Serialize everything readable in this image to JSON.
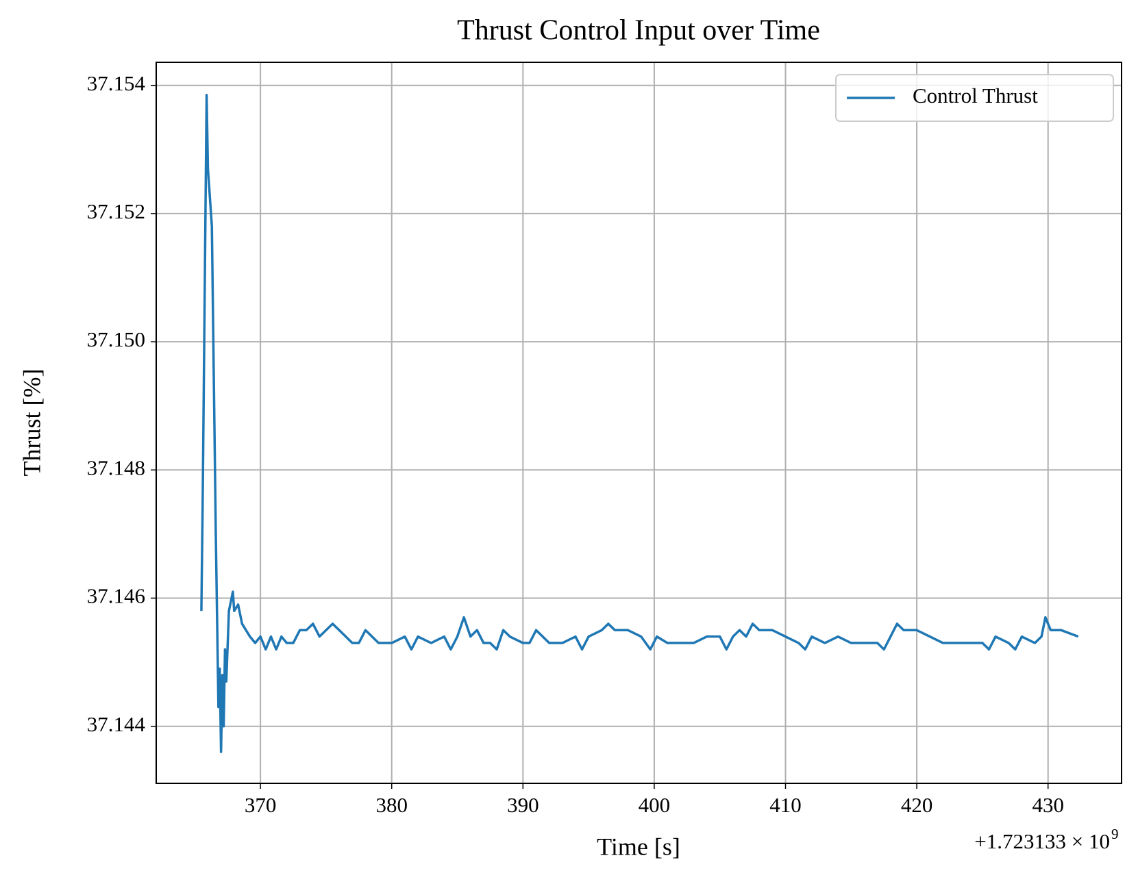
{
  "chart_data": {
    "type": "line",
    "title": "Thrust Control Input over Time",
    "x_label": "Time [s]",
    "y_label": "Thrust [%]",
    "x_offset_label": "+1.723133 × 10",
    "x_offset_exponent": "9",
    "legend": "upper right",
    "grid": true,
    "xlim": [
      362.06,
      435.6
    ],
    "ylim": [
      37.14311,
      37.15436
    ],
    "xticks": [
      370,
      380,
      390,
      400,
      410,
      420,
      430
    ],
    "yticks": [
      37.144,
      37.146,
      37.148,
      {
        "value": 37.15,
        "label": "37.150"
      },
      37.152,
      37.154
    ],
    "x": [
      365.5,
      365.6,
      365.9,
      366.0,
      366.3,
      366.6,
      366.8,
      366.9,
      367.0,
      367.1,
      367.2,
      367.3,
      367.4,
      367.6,
      367.9,
      368.0,
      368.3,
      368.6,
      368.9,
      369.2,
      369.6,
      370.0,
      370.4,
      370.8,
      371.2,
      371.6,
      372.0,
      372.5,
      373.0,
      373.5,
      374.0,
      374.5,
      375.0,
      375.5,
      376.0,
      376.5,
      377.0,
      377.5,
      378.0,
      378.5,
      379.0,
      380.0,
      381.0,
      381.5,
      382.0,
      383.0,
      384.0,
      384.5,
      385.0,
      385.5,
      386.0,
      386.5,
      387.0,
      387.5,
      388.0,
      388.5,
      389.0,
      390.0,
      390.5,
      391.0,
      392.0,
      393.0,
      394.0,
      394.5,
      395.0,
      396.0,
      396.5,
      397.0,
      398.0,
      399.0,
      399.7,
      400.2,
      401.0,
      402.0,
      403.0,
      404.0,
      405.0,
      405.5,
      406.0,
      406.5,
      407.0,
      407.5,
      408.0,
      409.0,
      410.0,
      411.0,
      411.5,
      412.0,
      413.0,
      414.0,
      415.0,
      416.0,
      417.0,
      417.5,
      418.0,
      418.5,
      419.0,
      420.0,
      421.0,
      422.0,
      423.0,
      424.0,
      425.0,
      425.5,
      426.0,
      427.0,
      427.5,
      428.0,
      429.0,
      429.5,
      429.8,
      430.2,
      431.0,
      432.3
    ],
    "series": [
      {
        "name": "Control Thrust",
        "color": "#1f77b4",
        "values": [
          37.1458,
          37.1475,
          37.15385,
          37.1527,
          37.1518,
          37.147,
          37.1443,
          37.1449,
          37.1436,
          37.1448,
          37.144,
          37.1452,
          37.1447,
          37.1458,
          37.1461,
          37.1458,
          37.1459,
          37.1456,
          37.1455,
          37.1454,
          37.1453,
          37.1454,
          37.1452,
          37.1454,
          37.1452,
          37.1454,
          37.1453,
          37.1453,
          37.1455,
          37.1455,
          37.1456,
          37.1454,
          37.1455,
          37.1456,
          37.1455,
          37.1454,
          37.1453,
          37.1453,
          37.1455,
          37.1454,
          37.1453,
          37.1453,
          37.1454,
          37.1452,
          37.1454,
          37.1453,
          37.1454,
          37.1452,
          37.1454,
          37.1457,
          37.1454,
          37.1455,
          37.1453,
          37.1453,
          37.1452,
          37.1455,
          37.1454,
          37.1453,
          37.1453,
          37.1455,
          37.1453,
          37.1453,
          37.1454,
          37.1452,
          37.1454,
          37.1455,
          37.1456,
          37.1455,
          37.1455,
          37.1454,
          37.1452,
          37.1454,
          37.1453,
          37.1453,
          37.1453,
          37.1454,
          37.1454,
          37.1452,
          37.1454,
          37.1455,
          37.1454,
          37.1456,
          37.1455,
          37.1455,
          37.1454,
          37.1453,
          37.1452,
          37.1454,
          37.1453,
          37.1454,
          37.1453,
          37.1453,
          37.1453,
          37.1452,
          37.1454,
          37.1456,
          37.1455,
          37.1455,
          37.1454,
          37.1453,
          37.1453,
          37.1453,
          37.1453,
          37.1452,
          37.1454,
          37.1453,
          37.1452,
          37.1454,
          37.1453,
          37.1454,
          37.1457,
          37.1455,
          37.1455,
          37.1454
        ]
      }
    ]
  }
}
